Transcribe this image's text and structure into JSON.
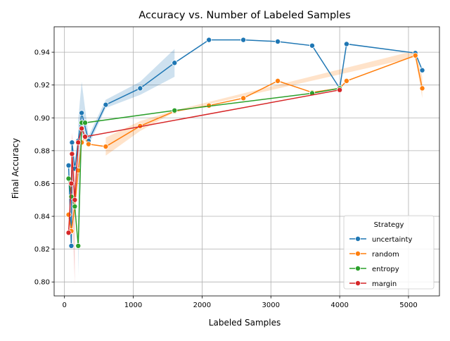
{
  "chart_data": {
    "type": "line",
    "title": "Accuracy vs. Number of Labeled Samples",
    "xlabel": "Labeled Samples",
    "ylabel": "Final Accuracy",
    "xlim": [
      -150,
      5450
    ],
    "ylim": [
      0.7915,
      0.9555
    ],
    "xticks": [
      0,
      1000,
      2000,
      3000,
      4000,
      5000
    ],
    "yticks": [
      0.8,
      0.82,
      0.84,
      0.86,
      0.88,
      0.9,
      0.92,
      0.94
    ],
    "ytick_format": 2,
    "grid": true,
    "legend": {
      "title": "Strategy",
      "position": "lower-right"
    },
    "series": [
      {
        "name": "uncertainty",
        "color": "#1f77b4",
        "x": [
          60,
          100,
          110,
          150,
          200,
          250,
          350,
          600,
          1100,
          1600,
          2100,
          2600,
          3100,
          3600,
          4000,
          4100,
          5100,
          5200
        ],
        "y": [
          0.871,
          0.822,
          0.885,
          0.869,
          0.886,
          0.903,
          0.886,
          0.908,
          0.918,
          0.9335,
          0.9475,
          0.9475,
          0.9465,
          0.944,
          0.918,
          0.945,
          0.9395,
          0.929
        ],
        "band": {
          "x": [
            200,
            250,
            350,
            600,
            1100,
            1600
          ],
          "lower": [
            0.804,
            0.889,
            0.883,
            0.906,
            0.914,
            0.925
          ],
          "upper": [
            0.899,
            0.922,
            0.889,
            0.911,
            0.922,
            0.942
          ]
        }
      },
      {
        "name": "random",
        "color": "#ff7f0e",
        "x": [
          60,
          100,
          150,
          200,
          250,
          300,
          350,
          600,
          1100,
          1600,
          2100,
          2600,
          3100,
          3600,
          4000,
          4100,
          5100,
          5200
        ],
        "y": [
          0.841,
          0.831,
          0.846,
          0.868,
          0.885,
          0.888,
          0.884,
          0.8825,
          0.895,
          0.904,
          0.9075,
          0.912,
          0.9225,
          0.9155,
          0.918,
          0.9225,
          0.938,
          0.918
        ],
        "band": {
          "x": [
            600,
            1100,
            1600,
            5100,
            5200
          ],
          "lower": [
            0.877,
            0.892,
            0.9035,
            0.937,
            0.912
          ],
          "upper": [
            0.888,
            0.898,
            0.9045,
            0.941,
            0.925
          ]
        }
      },
      {
        "name": "entropy",
        "color": "#2ca02c",
        "x": [
          60,
          100,
          150,
          200,
          250,
          300,
          1600,
          3600,
          4000
        ],
        "y": [
          0.863,
          0.852,
          0.846,
          0.822,
          0.897,
          0.897,
          0.9045,
          0.915,
          0.918
        ]
      },
      {
        "name": "margin",
        "color": "#d62728",
        "x": [
          60,
          100,
          110,
          150,
          200,
          250,
          300,
          4000
        ],
        "y": [
          0.83,
          0.86,
          0.878,
          0.85,
          0.885,
          0.8935,
          0.8885,
          0.917
        ],
        "band": {
          "x": [
            100,
            110,
            150
          ],
          "lower": [
            0.835,
            0.846,
            0.799
          ],
          "upper": [
            0.879,
            0.891,
            0.87
          ]
        }
      }
    ]
  }
}
